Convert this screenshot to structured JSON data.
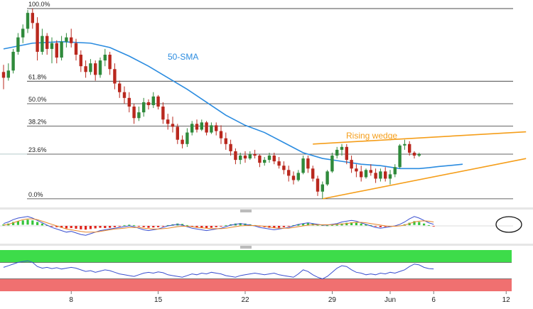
{
  "chart_data": {
    "type": "candlestick",
    "fib_levels": [
      {
        "label": "100.0%",
        "price": 1.13
      },
      {
        "label": "61.8%",
        "price": 1.1048
      },
      {
        "label": "50.0%",
        "price": 1.097
      },
      {
        "label": "38.2%",
        "price": 1.0892
      },
      {
        "label": "23.6%",
        "price": 1.0795
      },
      {
        "label": "0.0%",
        "price": 1.064
      }
    ],
    "price_range": [
      1.062,
      1.131
    ],
    "x_tick_labels": [
      {
        "label": "8",
        "bar": 14
      },
      {
        "label": "15",
        "bar": 32
      },
      {
        "label": "22",
        "bar": 50
      },
      {
        "label": "29",
        "bar": 68
      },
      {
        "label": "Jun",
        "bar": 80
      },
      {
        "label": "6",
        "bar": 89
      },
      {
        "label": "12",
        "bar": 104
      }
    ],
    "candles": [
      [
        1.108,
        1.1105,
        1.102,
        1.106
      ],
      [
        1.106,
        1.111,
        1.105,
        1.1085
      ],
      [
        1.1085,
        1.116,
        1.1075,
        1.115
      ],
      [
        1.115,
        1.1215,
        1.114,
        1.12
      ],
      [
        1.12,
        1.1245,
        1.118,
        1.123
      ],
      [
        1.123,
        1.1295,
        1.1215,
        1.1285
      ],
      [
        1.1285,
        1.13,
        1.123,
        1.125
      ],
      [
        1.125,
        1.127,
        1.112,
        1.115
      ],
      [
        1.115,
        1.123,
        1.114,
        1.1205
      ],
      [
        1.1205,
        1.1215,
        1.114,
        1.116
      ],
      [
        1.116,
        1.12,
        1.111,
        1.118
      ],
      [
        1.118,
        1.119,
        1.111,
        1.113
      ],
      [
        1.113,
        1.1205,
        1.112,
        1.1185
      ],
      [
        1.1185,
        1.1215,
        1.1165,
        1.12
      ],
      [
        1.12,
        1.123,
        1.1165,
        1.118
      ],
      [
        1.118,
        1.1195,
        1.112,
        1.114
      ],
      [
        1.114,
        1.1155,
        1.108,
        1.11
      ],
      [
        1.11,
        1.112,
        1.106,
        1.108
      ],
      [
        1.108,
        1.1125,
        1.107,
        1.111
      ],
      [
        1.111,
        1.112,
        1.105,
        1.107
      ],
      [
        1.107,
        1.113,
        1.106,
        1.112
      ],
      [
        1.112,
        1.116,
        1.11,
        1.114
      ],
      [
        1.114,
        1.115,
        1.107,
        1.109
      ],
      [
        1.109,
        1.111,
        1.102,
        1.104
      ],
      [
        1.104,
        1.105,
        1.099,
        1.101
      ],
      [
        1.101,
        1.103,
        1.097,
        1.099
      ],
      [
        1.099,
        1.101,
        1.094,
        1.096
      ],
      [
        1.096,
        1.097,
        1.09,
        1.092
      ],
      [
        1.092,
        1.096,
        1.091,
        1.094
      ],
      [
        1.094,
        1.099,
        1.0925,
        1.0975
      ],
      [
        1.0975,
        1.0985,
        1.095,
        1.0965
      ],
      [
        1.0965,
        1.101,
        1.0955,
        1.0995
      ],
      [
        1.0995,
        1.1,
        1.095,
        1.096
      ],
      [
        1.096,
        1.0975,
        1.09,
        1.0915
      ],
      [
        1.0915,
        1.0935,
        1.088,
        1.09
      ],
      [
        1.09,
        1.0925,
        1.087,
        1.089
      ],
      [
        1.089,
        1.09,
        1.083,
        1.0845
      ],
      [
        1.0845,
        1.086,
        1.0815,
        1.083
      ],
      [
        1.083,
        1.0885,
        1.082,
        1.087
      ],
      [
        1.087,
        1.091,
        1.086,
        1.09
      ],
      [
        1.09,
        1.0915,
        1.087,
        1.088
      ],
      [
        1.088,
        1.0915,
        1.0875,
        1.0905
      ],
      [
        1.0905,
        1.091,
        1.086,
        1.087
      ],
      [
        1.087,
        1.0905,
        1.0865,
        1.0895
      ],
      [
        1.0895,
        1.0905,
        1.086,
        1.0875
      ],
      [
        1.0875,
        1.0895,
        1.083,
        1.085
      ],
      [
        1.085,
        1.087,
        1.081,
        1.083
      ],
      [
        1.083,
        1.0845,
        1.079,
        1.0805
      ],
      [
        1.0805,
        1.0815,
        1.076,
        1.0775
      ],
      [
        1.0775,
        1.08,
        1.076,
        1.079
      ],
      [
        1.079,
        1.0805,
        1.0765,
        1.078
      ],
      [
        1.078,
        1.0805,
        1.0775,
        1.0795
      ],
      [
        1.0795,
        1.081,
        1.078,
        1.079
      ],
      [
        1.079,
        1.0795,
        1.075,
        1.0765
      ],
      [
        1.0765,
        1.0785,
        1.0755,
        1.0775
      ],
      [
        1.0775,
        1.08,
        1.0765,
        1.079
      ],
      [
        1.079,
        1.08,
        1.076,
        1.077
      ],
      [
        1.077,
        1.0785,
        1.0745,
        1.0755
      ],
      [
        1.0755,
        1.077,
        1.0725,
        1.074
      ],
      [
        1.074,
        1.0755,
        1.07,
        1.072
      ],
      [
        1.072,
        1.0735,
        1.069,
        1.0705
      ],
      [
        1.0705,
        1.074,
        1.07,
        1.073
      ],
      [
        1.073,
        1.079,
        1.0725,
        1.078
      ],
      [
        1.078,
        1.079,
        1.073,
        1.0745
      ],
      [
        1.0745,
        1.0755,
        1.07,
        1.071
      ],
      [
        1.071,
        1.072,
        1.065,
        1.0665
      ],
      [
        1.0665,
        1.07,
        1.064,
        1.069
      ],
      [
        1.069,
        1.074,
        1.0685,
        1.0735
      ],
      [
        1.0735,
        1.08,
        1.073,
        1.079
      ],
      [
        1.079,
        1.082,
        1.078,
        1.081
      ],
      [
        1.081,
        1.083,
        1.079,
        1.082
      ],
      [
        1.082,
        1.083,
        1.076,
        1.0775
      ],
      [
        1.0775,
        1.079,
        1.073,
        1.0745
      ],
      [
        1.0745,
        1.076,
        1.0715,
        1.0735
      ],
      [
        1.0735,
        1.0755,
        1.07,
        1.0715
      ],
      [
        1.0715,
        1.0745,
        1.071,
        1.074
      ],
      [
        1.074,
        1.076,
        1.072,
        1.073
      ],
      [
        1.073,
        1.0745,
        1.0695,
        1.071
      ],
      [
        1.071,
        1.0745,
        1.07,
        1.0735
      ],
      [
        1.0735,
        1.075,
        1.07,
        1.071
      ],
      [
        1.071,
        1.074,
        1.069,
        1.0725
      ],
      [
        1.0725,
        1.076,
        1.0715,
        1.075
      ],
      [
        1.075,
        1.083,
        1.0745,
        1.0825
      ],
      [
        1.0825,
        1.0845,
        1.081,
        1.083
      ],
      [
        1.083,
        1.084,
        1.079,
        1.08
      ],
      [
        1.08,
        1.0805,
        1.078,
        1.079
      ],
      [
        1.079,
        1.08,
        1.0785,
        1.0795
      ]
    ],
    "sma_label": "50-SMA",
    "sma_points": [
      [
        0,
        1.116
      ],
      [
        6,
        1.118
      ],
      [
        12,
        1.1185
      ],
      [
        18,
        1.118
      ],
      [
        22,
        1.1165
      ],
      [
        26,
        1.1135
      ],
      [
        30,
        1.11
      ],
      [
        34,
        1.106
      ],
      [
        38,
        1.102
      ],
      [
        42,
        1.0975
      ],
      [
        46,
        1.093
      ],
      [
        50,
        1.0895
      ],
      [
        54,
        1.087
      ],
      [
        58,
        1.0835
      ],
      [
        62,
        1.08
      ],
      [
        66,
        1.078
      ],
      [
        70,
        1.077
      ],
      [
        74,
        1.076
      ],
      [
        78,
        1.0755
      ],
      [
        82,
        1.0745
      ],
      [
        86,
        1.0745
      ],
      [
        88,
        1.0748
      ],
      [
        90,
        1.0752
      ],
      [
        92,
        1.0755
      ],
      [
        95,
        1.076
      ]
    ],
    "wedge_label": "Rising wedge",
    "wedge_upper": [
      [
        64,
        1.083
      ],
      [
        104,
        1.087
      ]
    ],
    "wedge_lower": [
      [
        66,
        1.064
      ],
      [
        104,
        1.076
      ]
    ],
    "macd": {
      "hist": [
        0.2,
        0.3,
        0.5,
        0.6,
        0.7,
        0.8,
        0.7,
        0.5,
        0.3,
        0.1,
        -0.1,
        -0.2,
        -0.3,
        -0.4,
        -0.35,
        -0.45,
        -0.55,
        -0.6,
        -0.5,
        -0.4,
        -0.3,
        -0.35,
        -0.3,
        -0.2,
        -0.1,
        0.1,
        0.15,
        0.1,
        -0.1,
        -0.2,
        -0.3,
        -0.25,
        -0.2,
        -0.1,
        0.1,
        0.2,
        0.3,
        0.25,
        0.1,
        -0.1,
        -0.2,
        -0.3,
        -0.35,
        -0.3,
        -0.2,
        -0.1,
        0.1,
        0.2,
        0.3,
        0.35,
        0.3,
        0.2,
        0.1,
        -0.1,
        -0.2,
        -0.3,
        -0.35,
        -0.3,
        -0.2,
        -0.1,
        0.1,
        0.2,
        0.3,
        0.35,
        0.3,
        0.2,
        0.1,
        0.05,
        0.1,
        0.2,
        0.3,
        0.4,
        0.45,
        0.4,
        0.3,
        0.2,
        0.1,
        -0.1,
        -0.2,
        -0.15,
        -0.1,
        -0.05,
        0.05,
        0.2,
        0.4,
        0.6,
        0.5,
        0.3,
        0.1,
        -0.05
      ],
      "macd_line": [
        0.3,
        0.5,
        0.8,
        1.0,
        1.1,
        1.2,
        1.0,
        0.7,
        0.4,
        0.1,
        -0.2,
        -0.4,
        -0.6,
        -0.8,
        -0.7,
        -0.9,
        -1.1,
        -1.2,
        -1.0,
        -0.8,
        -0.6,
        -0.5,
        -0.4,
        -0.3,
        -0.2,
        -0.1,
        0.0,
        -0.1,
        -0.3,
        -0.5,
        -0.6,
        -0.5,
        -0.4,
        -0.2,
        0.0,
        0.1,
        0.2,
        0.1,
        -0.1,
        -0.3,
        -0.4,
        -0.5,
        -0.6,
        -0.5,
        -0.4,
        -0.3,
        -0.1,
        0.1,
        0.2,
        0.3,
        0.2,
        0.1,
        0.0,
        -0.2,
        -0.3,
        -0.4,
        -0.5,
        -0.4,
        -0.3,
        -0.2,
        0.0,
        0.2,
        0.3,
        0.4,
        0.3,
        0.2,
        0.1,
        0.1,
        0.2,
        0.3,
        0.5,
        0.6,
        0.7,
        0.6,
        0.4,
        0.2,
        0.0,
        -0.2,
        -0.3,
        -0.2,
        -0.1,
        0.0,
        0.2,
        0.5,
        0.9,
        1.2,
        1.0,
        0.7,
        0.4,
        0.2
      ],
      "signal_line": [
        0.1,
        0.2,
        0.4,
        0.6,
        0.8,
        0.9,
        0.9,
        0.8,
        0.6,
        0.4,
        0.2,
        0.0,
        -0.2,
        -0.4,
        -0.5,
        -0.6,
        -0.7,
        -0.8,
        -0.8,
        -0.8,
        -0.7,
        -0.6,
        -0.5,
        -0.4,
        -0.35,
        -0.3,
        -0.2,
        -0.2,
        -0.2,
        -0.3,
        -0.35,
        -0.4,
        -0.4,
        -0.35,
        -0.3,
        -0.2,
        -0.1,
        -0.05,
        -0.05,
        -0.1,
        -0.2,
        -0.25,
        -0.3,
        -0.35,
        -0.35,
        -0.35,
        -0.3,
        -0.2,
        -0.1,
        0.0,
        0.05,
        0.05,
        0.05,
        0.0,
        -0.05,
        -0.15,
        -0.25,
        -0.3,
        -0.3,
        -0.3,
        -0.2,
        -0.1,
        0.0,
        0.1,
        0.15,
        0.15,
        0.15,
        0.15,
        0.15,
        0.2,
        0.25,
        0.3,
        0.4,
        0.45,
        0.45,
        0.4,
        0.3,
        0.2,
        0.1,
        0.0,
        -0.05,
        -0.05,
        0.0,
        0.1,
        0.3,
        0.5,
        0.6,
        0.65,
        0.6,
        0.5
      ]
    },
    "rsi": {
      "overbought": 70,
      "oversold": 30,
      "values": [
        58,
        62,
        66,
        70,
        72,
        74,
        70,
        60,
        56,
        58,
        55,
        57,
        54,
        56,
        58,
        56,
        52,
        48,
        50,
        46,
        49,
        52,
        50,
        46,
        42,
        40,
        38,
        36,
        40,
        44,
        46,
        44,
        47,
        45,
        40,
        38,
        36,
        34,
        38,
        42,
        40,
        44,
        42,
        46,
        44,
        42,
        38,
        36,
        34,
        38,
        40,
        42,
        44,
        42,
        40,
        42,
        44,
        40,
        38,
        36,
        34,
        42,
        52,
        48,
        40,
        34,
        30,
        36,
        46,
        56,
        62,
        60,
        52,
        46,
        44,
        40,
        42,
        40,
        44,
        42,
        46,
        44,
        48,
        52,
        60,
        66,
        64,
        58,
        55,
        54
      ]
    }
  }
}
